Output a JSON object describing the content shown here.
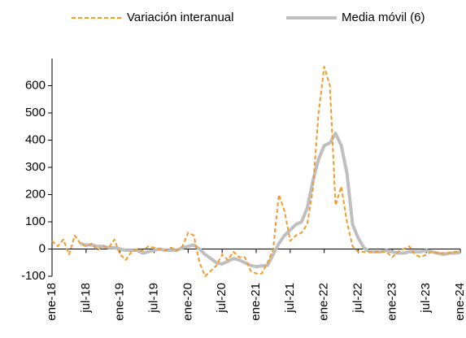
{
  "chart_data": {
    "type": "line",
    "categories": [
      "ene-18",
      null,
      null,
      null,
      null,
      null,
      "jul-18",
      null,
      null,
      null,
      null,
      null,
      "ene-19",
      null,
      null,
      null,
      null,
      null,
      "jul-19",
      null,
      null,
      null,
      null,
      null,
      "ene-20",
      null,
      null,
      null,
      null,
      null,
      "jul-20",
      null,
      null,
      null,
      null,
      null,
      "ene-21",
      null,
      null,
      null,
      null,
      null,
      "jul-21",
      null,
      null,
      null,
      null,
      null,
      "ene-22",
      null,
      null,
      null,
      null,
      null,
      "jul-22",
      null,
      null,
      null,
      null,
      null,
      "ene-23",
      null,
      null,
      null,
      null,
      null,
      "jul-23",
      null,
      null,
      null,
      null,
      null,
      "ene-24"
    ],
    "series": [
      {
        "name": "Variación interanual",
        "color": "#f39a2b",
        "dashed": true,
        "values": [
          30,
          10,
          35,
          -20,
          50,
          20,
          10,
          20,
          -5,
          10,
          5,
          35,
          -20,
          -40,
          -10,
          0,
          -5,
          10,
          5,
          0,
          -5,
          5,
          -5,
          10,
          60,
          50,
          -50,
          -100,
          -80,
          -60,
          -20,
          -40,
          -10,
          -30,
          -30,
          -80,
          -90,
          -90,
          -50,
          0,
          200,
          140,
          30,
          50,
          60,
          90,
          220,
          500,
          670,
          600,
          160,
          230,
          100,
          10,
          -10,
          -10,
          -10,
          -10,
          -10,
          -10,
          -30,
          -10,
          0,
          10,
          -20,
          -30,
          -20,
          -10,
          -15,
          -15,
          -15,
          -10,
          -10
        ]
      },
      {
        "name": "Media móvil (6)",
        "color": "#bfbfbf",
        "dashed": false,
        "values": [
          null,
          null,
          null,
          null,
          null,
          20,
          15,
          15,
          10,
          10,
          5,
          5,
          0,
          -5,
          -5,
          -5,
          -15,
          -10,
          -5,
          0,
          -5,
          -5,
          -5,
          5,
          10,
          15,
          0,
          -20,
          -35,
          -50,
          -55,
          -45,
          -35,
          -40,
          -50,
          -60,
          -65,
          -62,
          -60,
          -20,
          20,
          50,
          70,
          90,
          100,
          150,
          250,
          330,
          380,
          390,
          425,
          380,
          280,
          90,
          40,
          5,
          -10,
          -10,
          -10,
          -5,
          -10,
          -15,
          -15,
          -10,
          -10,
          -10,
          -5,
          -10,
          -15,
          -20,
          -15,
          -15,
          -12
        ]
      }
    ],
    "ylim": [
      -100,
      700
    ],
    "yticks": [
      -100,
      0,
      100,
      200,
      300,
      400,
      500,
      600
    ],
    "grid": false
  }
}
